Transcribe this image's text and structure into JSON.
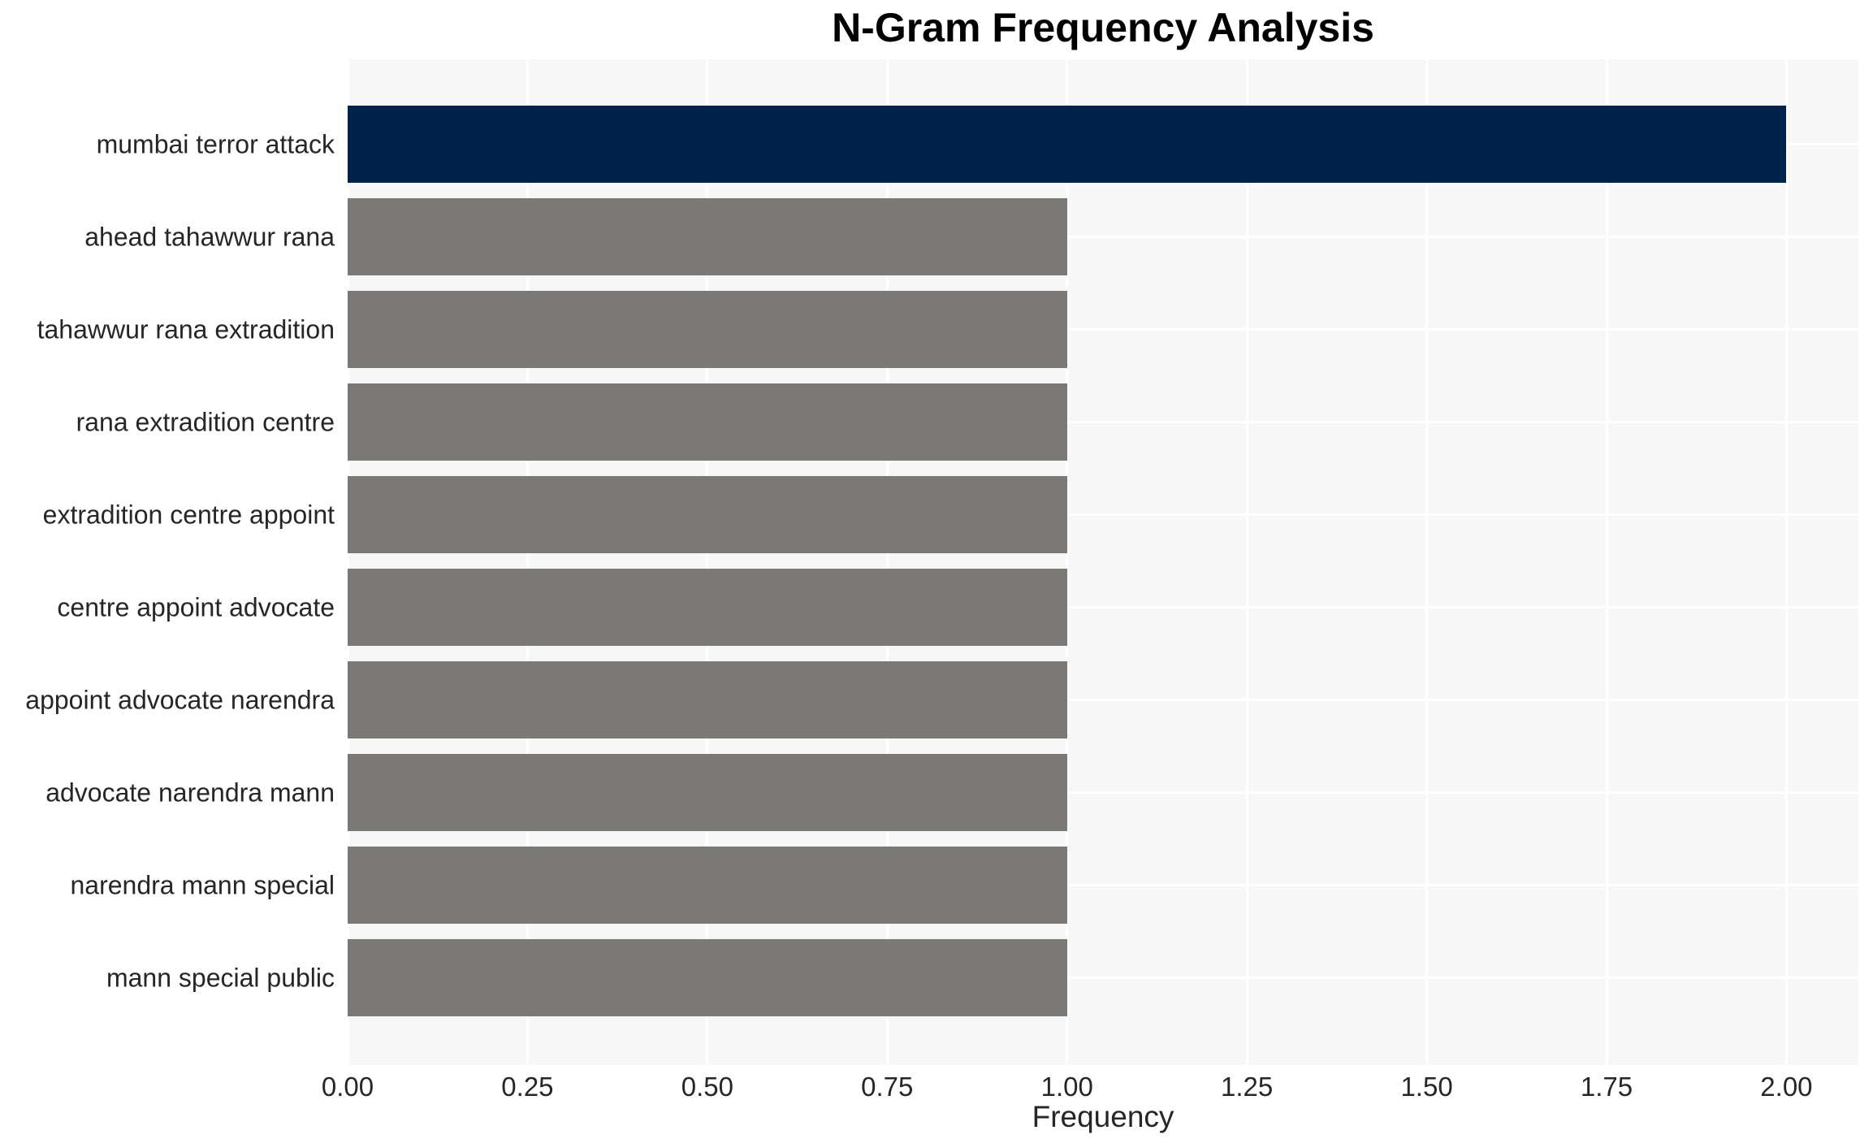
{
  "title": "N-Gram Frequency Analysis",
  "chart_data": {
    "type": "bar",
    "orientation": "horizontal",
    "title": "N-Gram Frequency Analysis",
    "xlabel": "Frequency",
    "ylabel": "",
    "categories": [
      "mumbai terror attack",
      "ahead tahawwur rana",
      "tahawwur rana extradition",
      "rana extradition centre",
      "extradition centre appoint",
      "centre appoint advocate",
      "appoint advocate narendra",
      "advocate narendra mann",
      "narendra mann special",
      "mann special public"
    ],
    "values": [
      2,
      1,
      1,
      1,
      1,
      1,
      1,
      1,
      1,
      1
    ],
    "xlim": [
      0,
      2.1
    ],
    "xticks": [
      "0.00",
      "0.25",
      "0.50",
      "0.75",
      "1.00",
      "1.25",
      "1.50",
      "1.75",
      "2.00"
    ],
    "xtick_values": [
      0,
      0.25,
      0.5,
      0.75,
      1.0,
      1.25,
      1.5,
      1.75,
      2.0
    ],
    "grid": true,
    "legend": "none",
    "colors": {
      "highlight_bar": "#00234C",
      "default_bar": "#7A7975",
      "plot_background": "#F7F7F7",
      "gridline": "#FFFFFF",
      "tick_text": "#262626",
      "title_text": "#000000"
    },
    "bar_colors": [
      "#00234C",
      "#7A7975",
      "#7A7975",
      "#7A7975",
      "#7A7975",
      "#7A7975",
      "#7A7975",
      "#7A7975",
      "#7A7975",
      "#7A7975"
    ]
  }
}
